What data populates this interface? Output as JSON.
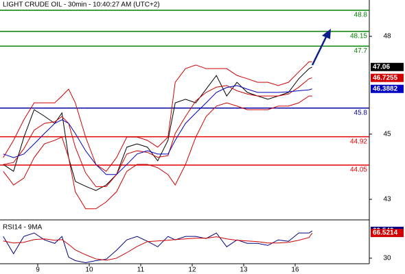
{
  "chart_data": [
    {
      "type": "line",
      "title": "LIGHT CRUDE OIL - 30min - 10:40:27 AM (UTC+2)",
      "x": [
        -0.67,
        -0.47,
        -0.27,
        -0.07,
        0.13,
        0.33,
        0.47,
        0.6,
        0.73,
        0.93,
        1.13,
        1.33,
        1.53,
        1.73,
        1.93,
        2.13,
        2.33,
        2.53,
        2.67,
        2.87,
        3.07,
        3.27,
        3.47,
        3.67,
        3.87,
        4.07,
        4.27,
        4.47,
        4.67,
        4.87,
        5.07,
        5.27,
        5.33
      ],
      "xlim": [
        -0.733,
        6.44
      ],
      "xticks": [
        {
          "value": 0,
          "label": "9"
        },
        {
          "value": 1,
          "label": "10"
        },
        {
          "value": 2,
          "label": "11"
        },
        {
          "value": 3,
          "label": "12"
        },
        {
          "value": 4,
          "label": "13"
        },
        {
          "value": 5,
          "label": "16"
        }
      ],
      "ylim": [
        42.39,
        49.115
      ],
      "yticks": [
        43,
        45,
        48
      ],
      "levels": [
        {
          "value": 48.8,
          "color": "#008000"
        },
        {
          "value": 48.15,
          "color": "#008000"
        },
        {
          "value": 47.7,
          "color": "#008000"
        },
        {
          "value": 45.8,
          "color": "#0000a0"
        },
        {
          "value": 44.92,
          "color": "#e00000"
        },
        {
          "value": 44.05,
          "color": "#e00000"
        }
      ],
      "series": [
        {
          "color": "#000000",
          "label_last": true,
          "values": [
            44.07,
            43.86,
            44.9,
            45.75,
            45.55,
            45.33,
            45.65,
            44.28,
            43.55,
            43.4,
            43.27,
            43.44,
            43.76,
            44.6,
            44.7,
            44.6,
            44.18,
            44.81,
            45.96,
            46.07,
            45.96,
            46.38,
            46.8,
            46.17,
            46.59,
            46.28,
            46.17,
            46.07,
            46.17,
            46.28,
            46.7,
            47.01,
            47.06
          ]
        },
        {
          "color": "#d00000",
          "label_last": false,
          "values": [
            44.28,
            44.81,
            45.44,
            45.96,
            45.96,
            45.96,
            46.17,
            46.38,
            45.96,
            44.91,
            44.07,
            43.86,
            44.28,
            44.91,
            44.91,
            44.81,
            44.6,
            44.91,
            46.59,
            47.01,
            47.12,
            47.01,
            47.01,
            47.01,
            46.8,
            46.7,
            46.59,
            46.59,
            46.49,
            46.59,
            46.91,
            47.22,
            47.22
          ]
        },
        {
          "color": "#d00000",
          "label_last": true,
          "values": [
            44.07,
            44.13,
            44.55,
            45.12,
            45.33,
            45.38,
            45.54,
            45.33,
            44.6,
            43.81,
            43.39,
            43.39,
            43.76,
            44.39,
            44.49,
            44.44,
            44.29,
            44.34,
            45.02,
            45.54,
            46.02,
            46.28,
            46.44,
            46.49,
            46.33,
            46.23,
            46.17,
            46.17,
            46.17,
            46.23,
            46.44,
            46.7,
            46.7255
          ]
        },
        {
          "color": "#d00000",
          "label_last": false,
          "values": [
            43.86,
            43.44,
            43.65,
            44.28,
            44.7,
            44.81,
            44.91,
            44.28,
            43.23,
            42.71,
            42.71,
            42.92,
            43.23,
            43.86,
            44.07,
            44.07,
            43.97,
            43.76,
            43.44,
            44.07,
            44.91,
            45.54,
            45.86,
            45.96,
            45.86,
            45.75,
            45.75,
            45.75,
            45.86,
            45.86,
            45.96,
            46.17,
            46.17
          ]
        },
        {
          "color": "#0000c0",
          "label_last": true,
          "values": [
            44.39,
            44.28,
            44.39,
            44.7,
            45.02,
            45.33,
            45.44,
            45.33,
            45.02,
            44.49,
            44.07,
            43.76,
            43.76,
            44.07,
            44.39,
            44.49,
            44.39,
            44.39,
            44.81,
            45.33,
            45.65,
            45.96,
            46.28,
            46.43,
            46.49,
            46.38,
            46.28,
            46.28,
            46.28,
            46.3,
            46.33,
            46.36,
            46.3882
          ]
        }
      ]
    },
    {
      "type": "line",
      "title": "RSI14 - 9MA",
      "x": [
        -0.67,
        -0.47,
        -0.27,
        -0.07,
        0.13,
        0.33,
        0.47,
        0.6,
        0.73,
        0.93,
        1.13,
        1.33,
        1.53,
        1.73,
        1.93,
        2.13,
        2.33,
        2.53,
        2.67,
        2.87,
        3.07,
        3.27,
        3.47,
        3.67,
        3.87,
        4.07,
        4.27,
        4.47,
        4.67,
        4.87,
        5.07,
        5.27,
        5.33
      ],
      "xlim": [
        -0.733,
        6.44
      ],
      "ylim": [
        22,
        81.5
      ],
      "yticks": [
        30
      ],
      "series": [
        {
          "color": "#000080",
          "label_last": true,
          "values": [
            61.5,
            36.5,
            61.5,
            66.5,
            56.5,
            51.5,
            61.5,
            31.5,
            26.5,
            23.5,
            26.5,
            28.5,
            41.5,
            56.5,
            61.5,
            54.5,
            46.5,
            61.5,
            56.5,
            61.5,
            61.5,
            58.5,
            66.5,
            46.5,
            56.5,
            51.5,
            51.5,
            48.5,
            56.5,
            54.5,
            66.5,
            66.5,
            69.549
          ]
        },
        {
          "color": "#d00000",
          "label_last": true,
          "values": [
            55,
            52,
            53,
            57,
            58,
            56,
            57,
            50,
            42,
            35,
            29,
            27,
            30,
            38,
            47,
            54,
            55,
            56,
            57,
            58,
            59,
            59,
            61,
            58,
            56,
            55,
            54,
            52,
            52,
            53,
            56,
            60,
            66.5214
          ]
        }
      ]
    }
  ]
}
